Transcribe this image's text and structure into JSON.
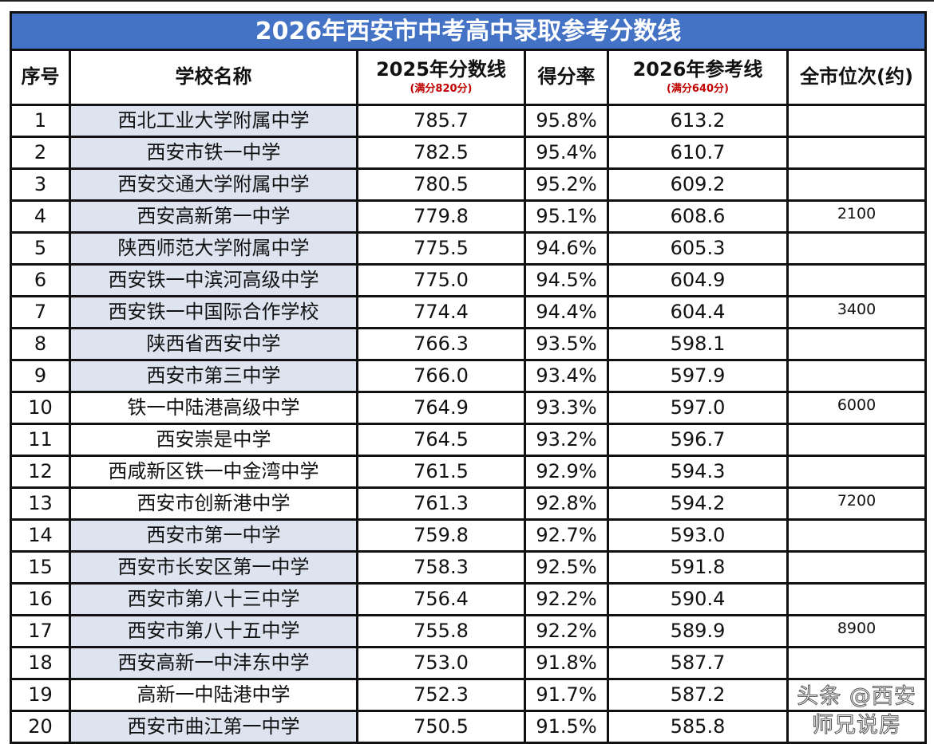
{
  "title": "2026年西安市中考高中录取参考分数线",
  "headers": {
    "no": "序号",
    "school": "学校名称",
    "score2025": "2025年分数线",
    "score2025_sub": "(满分820分)",
    "rate": "得分率",
    "ref2026": "2026年参考线",
    "ref2026_sub": "(满分640分)",
    "rank": "全市位次(约)"
  },
  "colors": {
    "title_bg": "#4472c4",
    "name_shade": "#dde3ef",
    "subtitle_red": "#c00000"
  },
  "rows": [
    {
      "no": "1",
      "school": "西北工业大学附属中学",
      "score2025": "785.7",
      "rate": "95.8%",
      "ref2026": "613.2",
      "rank": "",
      "shaded": true
    },
    {
      "no": "2",
      "school": "西安市铁一中学",
      "score2025": "782.5",
      "rate": "95.4%",
      "ref2026": "610.7",
      "rank": "",
      "shaded": true
    },
    {
      "no": "3",
      "school": "西安交通大学附属中学",
      "score2025": "780.5",
      "rate": "95.2%",
      "ref2026": "609.2",
      "rank": "",
      "shaded": true
    },
    {
      "no": "4",
      "school": "西安高新第一中学",
      "score2025": "779.8",
      "rate": "95.1%",
      "ref2026": "608.6",
      "rank": "2100",
      "shaded": true
    },
    {
      "no": "5",
      "school": "陕西师范大学附属中学",
      "score2025": "775.5",
      "rate": "94.6%",
      "ref2026": "605.3",
      "rank": "",
      "shaded": true
    },
    {
      "no": "6",
      "school": "西安铁一中滨河高级中学",
      "score2025": "775.0",
      "rate": "94.5%",
      "ref2026": "604.9",
      "rank": "",
      "shaded": true
    },
    {
      "no": "7",
      "school": "西安铁一中国际合作学校",
      "score2025": "774.4",
      "rate": "94.4%",
      "ref2026": "604.4",
      "rank": "3400",
      "shaded": true
    },
    {
      "no": "8",
      "school": "陕西省西安中学",
      "score2025": "766.3",
      "rate": "93.5%",
      "ref2026": "598.1",
      "rank": "",
      "shaded": true
    },
    {
      "no": "9",
      "school": "西安市第三中学",
      "score2025": "766.0",
      "rate": "93.4%",
      "ref2026": "597.9",
      "rank": "",
      "shaded": true
    },
    {
      "no": "10",
      "school": "铁一中陆港高级中学",
      "score2025": "764.9",
      "rate": "93.3%",
      "ref2026": "597.0",
      "rank": "6000",
      "shaded": false
    },
    {
      "no": "11",
      "school": "西安崇是中学",
      "score2025": "764.5",
      "rate": "93.2%",
      "ref2026": "596.7",
      "rank": "",
      "shaded": false
    },
    {
      "no": "12",
      "school": "西咸新区铁一中金湾中学",
      "score2025": "761.5",
      "rate": "92.9%",
      "ref2026": "594.3",
      "rank": "",
      "shaded": false
    },
    {
      "no": "13",
      "school": "西安市创新港中学",
      "score2025": "761.3",
      "rate": "92.8%",
      "ref2026": "594.2",
      "rank": "7200",
      "shaded": false
    },
    {
      "no": "14",
      "school": "西安市第一中学",
      "score2025": "759.8",
      "rate": "92.7%",
      "ref2026": "593.0",
      "rank": "",
      "shaded": true
    },
    {
      "no": "15",
      "school": "西安市长安区第一中学",
      "score2025": "758.3",
      "rate": "92.5%",
      "ref2026": "591.8",
      "rank": "",
      "shaded": true
    },
    {
      "no": "16",
      "school": "西安市第八十三中学",
      "score2025": "756.4",
      "rate": "92.2%",
      "ref2026": "590.4",
      "rank": "",
      "shaded": true
    },
    {
      "no": "17",
      "school": "西安市第八十五中学",
      "score2025": "755.8",
      "rate": "92.2%",
      "ref2026": "589.9",
      "rank": "8900",
      "shaded": true
    },
    {
      "no": "18",
      "school": "西安高新一中沣东中学",
      "score2025": "753.0",
      "rate": "91.8%",
      "ref2026": "587.7",
      "rank": "",
      "shaded": true
    },
    {
      "no": "19",
      "school": "高新一中陆港中学",
      "score2025": "752.3",
      "rate": "91.7%",
      "ref2026": "587.2",
      "rank": "",
      "shaded": false
    },
    {
      "no": "20",
      "school": "西安市曲江第一中学",
      "score2025": "750.5",
      "rate": "91.5%",
      "ref2026": "585.8",
      "rank": "",
      "shaded": true
    }
  ],
  "watermark": "头条 @西安师兄说房"
}
